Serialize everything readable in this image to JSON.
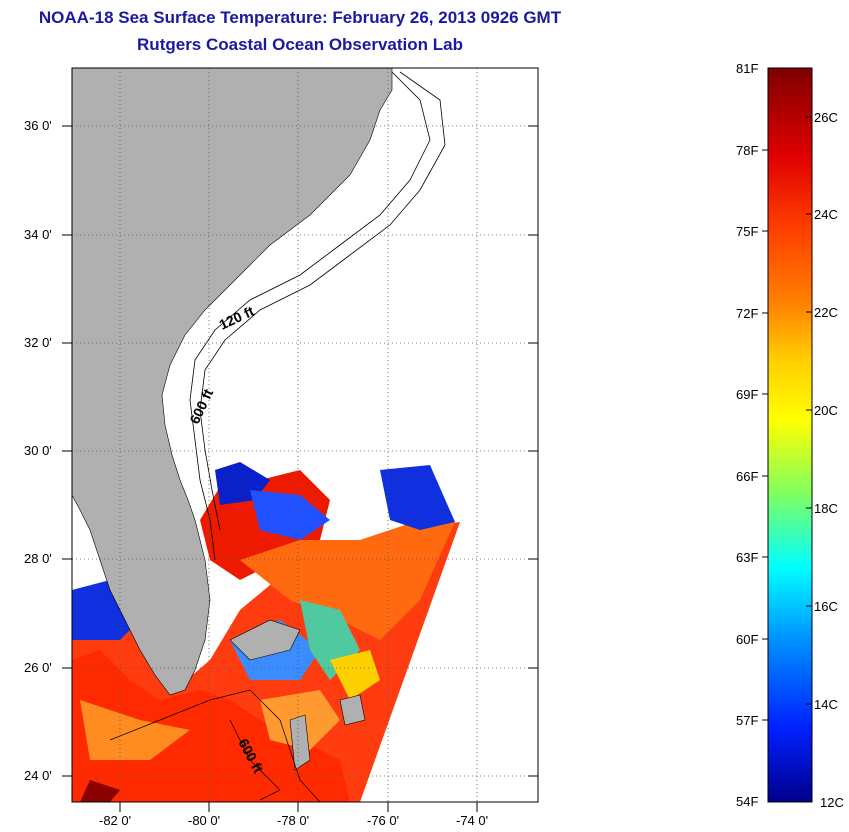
{
  "header": {
    "title": "NOAA-18 Sea Surface Temperature:  February 26, 2013 0926 GMT",
    "subtitle": "Rutgers Coastal Ocean Observation Lab"
  },
  "map": {
    "lat_labels": [
      "36 0'",
      "34 0'",
      "32 0'",
      "30 0'",
      "28 0'",
      "26 0'",
      "24 0'"
    ],
    "lon_labels": [
      "-82 0'",
      "-80 0'",
      "-78 0'",
      "-76 0'",
      "-74 0'"
    ],
    "contours": {
      "shallow": "120 ft",
      "deep_north": "600 ft",
      "deep_south": "600 ft"
    },
    "colors": {
      "land": "#b0b0b0",
      "water_background": "#ffffff",
      "grid": "#555555"
    }
  },
  "colorbar": {
    "fahrenheit": [
      "81F",
      "78F",
      "75F",
      "72F",
      "69F",
      "66F",
      "63F",
      "60F",
      "57F",
      "54F"
    ],
    "celsius": [
      "26C",
      "24C",
      "22C",
      "20C",
      "18C",
      "16C",
      "14C",
      "12C"
    ],
    "colormap": [
      "#7f0000",
      "#c00000",
      "#ff2000",
      "#ff8000",
      "#ffd000",
      "#ffff00",
      "#80ff60",
      "#00ffff",
      "#0090ff",
      "#0020ff",
      "#00008a"
    ]
  }
}
